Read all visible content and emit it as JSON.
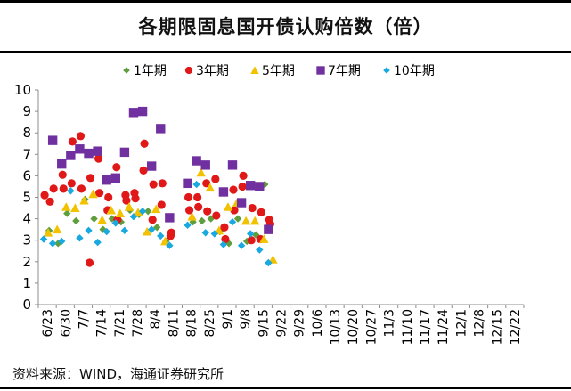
{
  "title": "各期限固息国开债认购倍数（倍）",
  "source": "资料来源：WIND，海通证券研究所",
  "chart_data": {
    "type": "scatter",
    "title": "各期限固息国开债认购倍数（倍）",
    "xlabel": "",
    "ylabel": "",
    "ylim": [
      0,
      10
    ],
    "yticks": [
      0,
      1,
      2,
      3,
      4,
      5,
      6,
      7,
      8,
      9,
      10
    ],
    "categories": [
      "6/23",
      "6/30",
      "7/7",
      "7/14",
      "7/21",
      "7/28",
      "8/4",
      "8/11",
      "8/18",
      "8/25",
      "9/1",
      "9/8",
      "9/15",
      "9/22",
      "9/29",
      "10/6",
      "10/13",
      "10/20",
      "10/27",
      "11/3",
      "11/10",
      "11/17",
      "11/24",
      "12/1",
      "12/8",
      "12/15",
      "12/22"
    ],
    "legend_position": "top",
    "series": [
      {
        "name": "1年期",
        "marker": "diamond",
        "color": "#5f9e3c",
        "points": [
          [
            0.1,
            3.45
          ],
          [
            0.6,
            2.85
          ],
          [
            1.1,
            4.25
          ],
          [
            1.6,
            3.9
          ],
          [
            2.1,
            4.9
          ],
          [
            2.6,
            4.0
          ],
          [
            3.1,
            3.5
          ],
          [
            3.6,
            4.0
          ],
          [
            4.1,
            3.85
          ],
          [
            4.6,
            4.4
          ],
          [
            5.1,
            4.2
          ],
          [
            5.6,
            4.35
          ],
          [
            6.1,
            3.6
          ],
          [
            6.6,
            2.95
          ],
          [
            8.1,
            3.85
          ],
          [
            8.6,
            3.9
          ],
          [
            9.1,
            4.0
          ],
          [
            9.6,
            3.4
          ],
          [
            10.1,
            2.85
          ],
          [
            10.6,
            4.0
          ],
          [
            11.1,
            2.95
          ],
          [
            11.6,
            3.25
          ],
          [
            12.1,
            5.6
          ]
        ]
      },
      {
        "name": "3年期",
        "marker": "circle",
        "color": "#e01818",
        "points": [
          [
            -0.15,
            5.1
          ],
          [
            0.15,
            4.8
          ],
          [
            0.35,
            5.4
          ],
          [
            0.85,
            6.05
          ],
          [
            0.9,
            5.4
          ],
          [
            1.35,
            5.65
          ],
          [
            1.4,
            7.6
          ],
          [
            1.85,
            7.85
          ],
          [
            1.9,
            5.4
          ],
          [
            2.35,
            1.95
          ],
          [
            2.4,
            5.9
          ],
          [
            2.85,
            6.8
          ],
          [
            2.9,
            5.2
          ],
          [
            3.35,
            4.4
          ],
          [
            3.4,
            5.0
          ],
          [
            3.85,
            6.4
          ],
          [
            3.9,
            3.95
          ],
          [
            4.35,
            5.1
          ],
          [
            4.4,
            4.85
          ],
          [
            4.85,
            5.2
          ],
          [
            4.9,
            4.95
          ],
          [
            5.35,
            6.25
          ],
          [
            5.4,
            7.5
          ],
          [
            5.85,
            3.95
          ],
          [
            5.9,
            5.6
          ],
          [
            6.35,
            4.65
          ],
          [
            6.4,
            5.65
          ],
          [
            6.85,
            3.2
          ],
          [
            6.9,
            3.35
          ],
          [
            7.85,
            5.0
          ],
          [
            7.9,
            4.4
          ],
          [
            8.35,
            5.0
          ],
          [
            8.4,
            4.55
          ],
          [
            8.85,
            5.65
          ],
          [
            8.9,
            4.35
          ],
          [
            9.35,
            5.85
          ],
          [
            9.4,
            4.15
          ],
          [
            9.85,
            3.6
          ],
          [
            9.9,
            3.05
          ],
          [
            10.35,
            5.35
          ],
          [
            10.4,
            4.4
          ],
          [
            10.85,
            5.5
          ],
          [
            10.9,
            6.0
          ],
          [
            11.35,
            3.0
          ],
          [
            11.4,
            4.5
          ],
          [
            11.85,
            3.05
          ],
          [
            11.9,
            4.3
          ],
          [
            12.35,
            3.95
          ],
          [
            12.4,
            3.75
          ]
        ]
      },
      {
        "name": "5年期",
        "marker": "triangle",
        "color": "#f2c200",
        "points": [
          [
            0.05,
            3.35
          ],
          [
            0.55,
            3.5
          ],
          [
            1.05,
            4.55
          ],
          [
            1.55,
            4.5
          ],
          [
            2.05,
            4.85
          ],
          [
            2.55,
            5.15
          ],
          [
            3.05,
            3.95
          ],
          [
            3.55,
            4.4
          ],
          [
            4.05,
            4.25
          ],
          [
            4.55,
            4.55
          ],
          [
            5.05,
            4.3
          ],
          [
            5.55,
            3.4
          ],
          [
            6.05,
            4.45
          ],
          [
            6.55,
            2.95
          ],
          [
            8.05,
            4.1
          ],
          [
            8.55,
            6.15
          ],
          [
            9.05,
            5.45
          ],
          [
            9.55,
            3.45
          ],
          [
            10.05,
            4.55
          ],
          [
            10.55,
            4.75
          ],
          [
            11.05,
            3.9
          ],
          [
            11.55,
            3.9
          ],
          [
            12.05,
            3.05
          ],
          [
            12.55,
            2.1
          ]
        ]
      },
      {
        "name": "7年期",
        "marker": "square",
        "color": "#7030a0",
        "points": [
          [
            0.3,
            7.65
          ],
          [
            0.8,
            6.55
          ],
          [
            1.3,
            6.95
          ],
          [
            1.8,
            7.25
          ],
          [
            2.3,
            7.05
          ],
          [
            2.8,
            7.15
          ],
          [
            3.3,
            5.8
          ],
          [
            3.8,
            5.9
          ],
          [
            4.3,
            7.1
          ],
          [
            4.8,
            8.95
          ],
          [
            5.3,
            9.0
          ],
          [
            5.8,
            6.45
          ],
          [
            6.3,
            8.2
          ],
          [
            6.8,
            4.05
          ],
          [
            7.8,
            5.65
          ],
          [
            8.3,
            6.7
          ],
          [
            8.8,
            6.5
          ],
          [
            9.8,
            5.25
          ],
          [
            10.3,
            6.5
          ],
          [
            10.8,
            4.75
          ],
          [
            11.3,
            5.55
          ],
          [
            11.8,
            5.5
          ],
          [
            12.3,
            3.5
          ]
        ]
      },
      {
        "name": "10年期",
        "marker": "diamond",
        "color": "#1aa8e0",
        "points": [
          [
            -0.2,
            3.05
          ],
          [
            0.3,
            2.85
          ],
          [
            0.8,
            2.95
          ],
          [
            1.3,
            5.3
          ],
          [
            1.8,
            3.1
          ],
          [
            2.3,
            3.45
          ],
          [
            2.8,
            2.9
          ],
          [
            3.3,
            3.4
          ],
          [
            3.8,
            3.8
          ],
          [
            4.3,
            3.45
          ],
          [
            4.8,
            4.1
          ],
          [
            5.3,
            4.35
          ],
          [
            5.8,
            3.5
          ],
          [
            6.3,
            3.2
          ],
          [
            6.8,
            2.75
          ],
          [
            7.8,
            3.7
          ],
          [
            8.3,
            5.6
          ],
          [
            8.8,
            3.35
          ],
          [
            9.3,
            3.3
          ],
          [
            9.8,
            2.8
          ],
          [
            10.3,
            3.85
          ],
          [
            10.8,
            2.75
          ],
          [
            11.3,
            3.3
          ],
          [
            11.8,
            2.55
          ],
          [
            12.3,
            1.95
          ]
        ]
      }
    ]
  }
}
